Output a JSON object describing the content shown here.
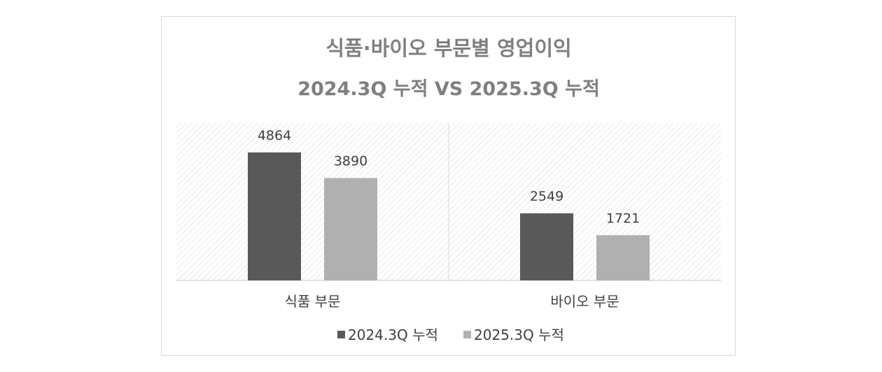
{
  "chart_data": {
    "type": "bar",
    "title": "식품·바이오 부문별 영업이익",
    "subtitle": "2024.3Q 누적 VS 2025.3Q 누적",
    "categories": [
      "식품 부문",
      "바이오 부문"
    ],
    "series": [
      {
        "name": "2024.3Q 누적",
        "values": [
          4864,
          2549
        ],
        "color": "#595959"
      },
      {
        "name": "2025.3Q 누적",
        "values": [
          3890,
          1721
        ],
        "color": "#b0b0b0"
      }
    ],
    "ylim": [
      0,
      6000
    ],
    "grid": false,
    "legend_position": "bottom",
    "plot_background": "diagonal-hatch"
  }
}
